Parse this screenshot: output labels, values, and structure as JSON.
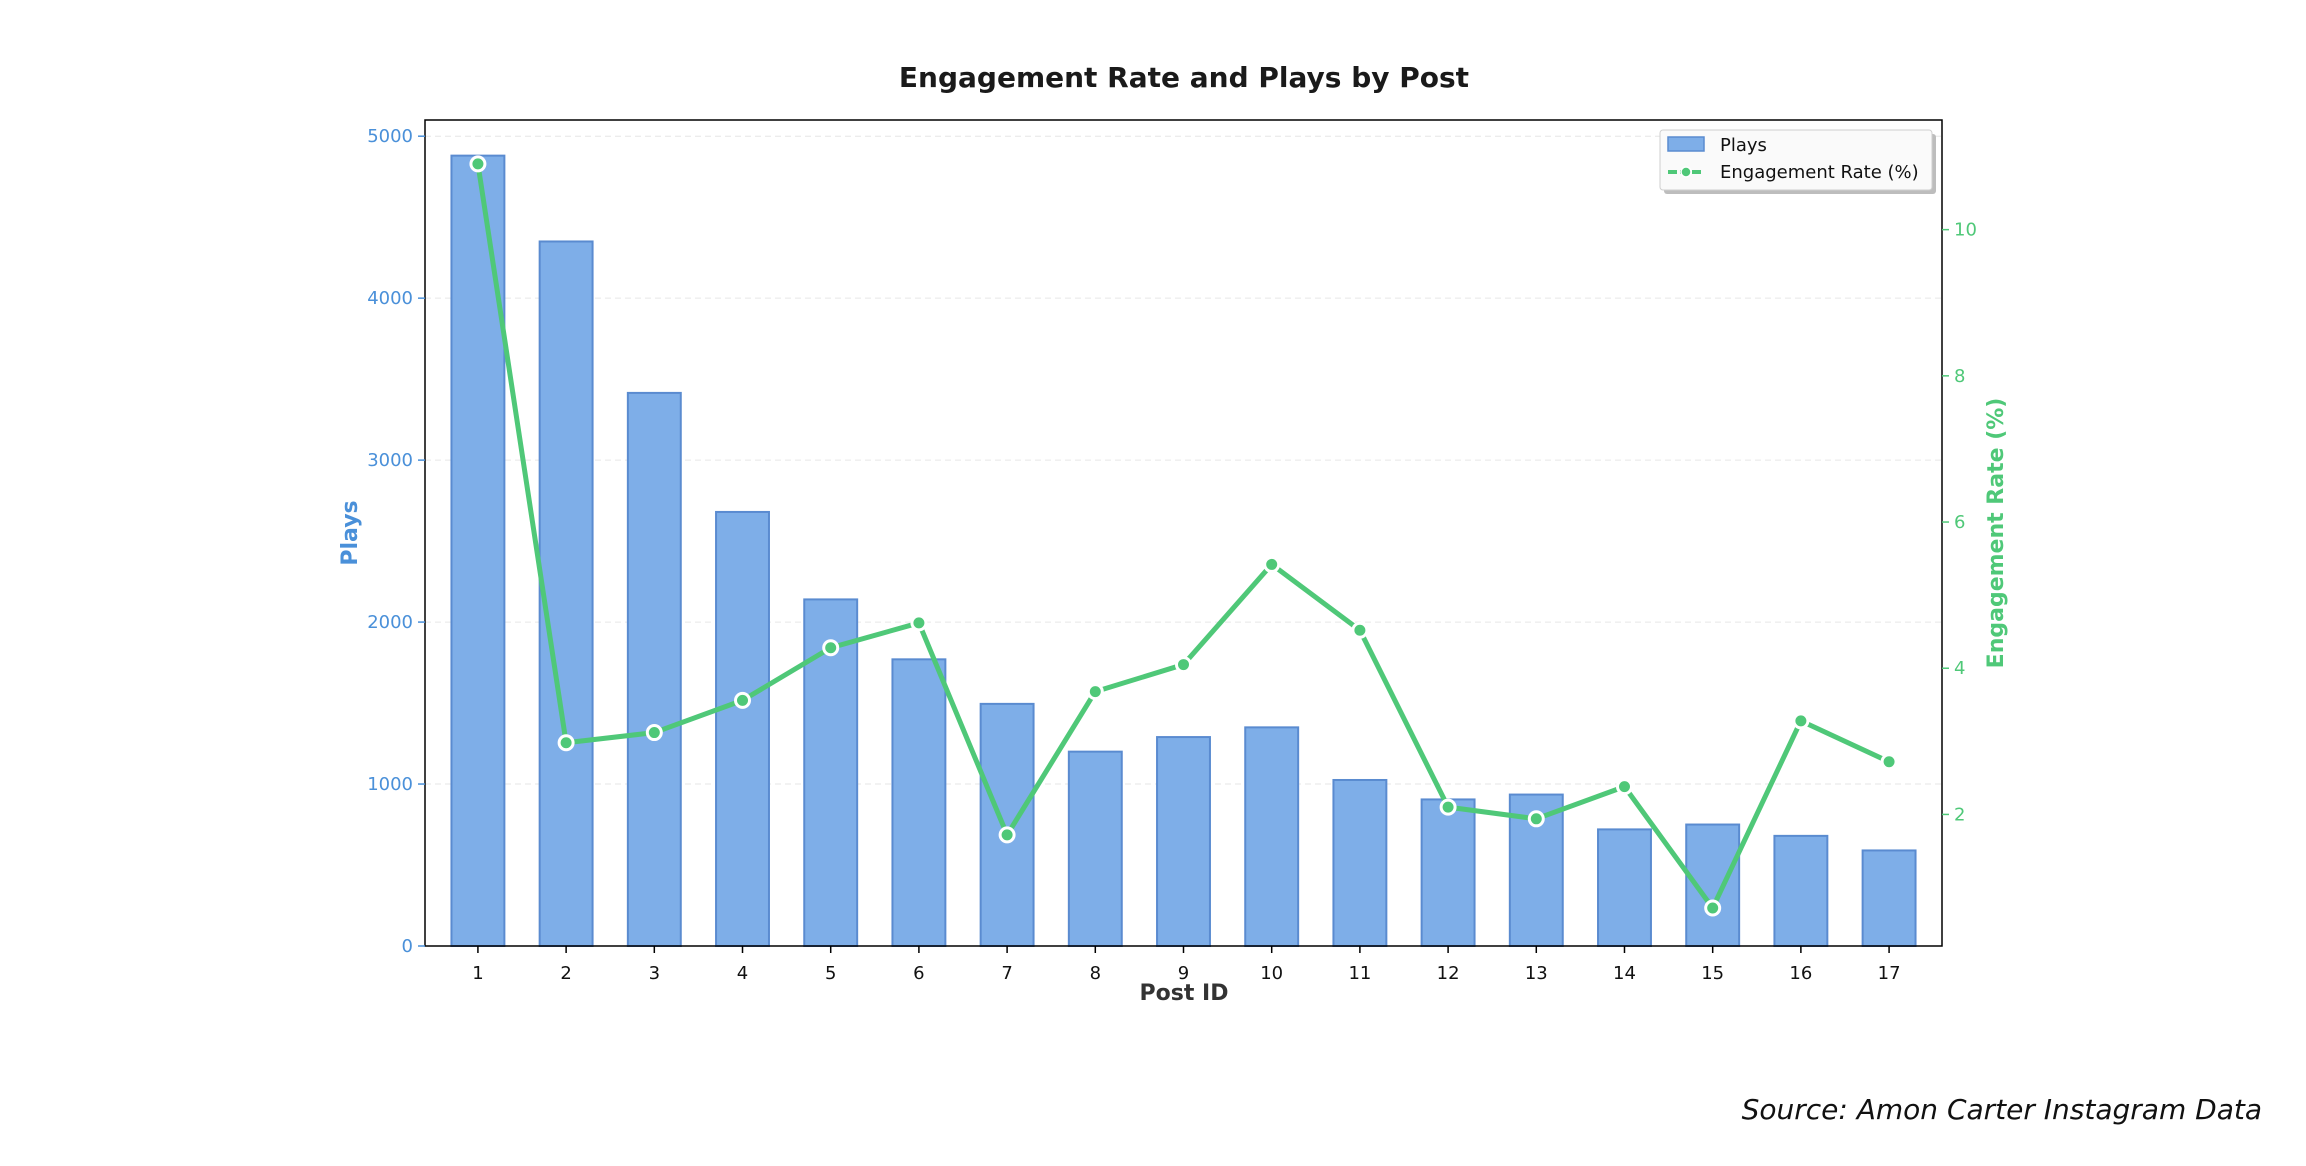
{
  "chart_data": {
    "type": "bar",
    "title": "Engagement Rate and Plays by Post",
    "xlabel": "Post ID",
    "ylabel": "Plays",
    "y2label": "Engagement Rate (%)",
    "categories": [
      "1",
      "2",
      "3",
      "4",
      "5",
      "6",
      "7",
      "8",
      "9",
      "10",
      "11",
      "12",
      "13",
      "14",
      "15",
      "16",
      "17"
    ],
    "ylim": [
      0,
      5100
    ],
    "y2lim": [
      0.2,
      11.5
    ],
    "yticks": [
      0,
      1000,
      2000,
      3000,
      4000,
      5000
    ],
    "y2ticks": [
      2,
      4,
      6,
      8,
      10
    ],
    "grid": true,
    "legend_position": "top-right",
    "series": [
      {
        "name": "Plays",
        "type": "bar",
        "axis": "left",
        "values": [
          4880,
          4350,
          3415,
          2680,
          2140,
          1770,
          1495,
          1200,
          1290,
          1350,
          1025,
          905,
          935,
          720,
          750,
          680,
          590
        ]
      },
      {
        "name": "Engagement Rate (%)",
        "type": "line",
        "axis": "right",
        "values": [
          10.9,
          2.98,
          3.12,
          3.56,
          4.28,
          4.62,
          1.72,
          3.68,
          4.05,
          5.42,
          4.52,
          2.1,
          1.94,
          2.38,
          0.72,
          3.28,
          2.72
        ]
      }
    ],
    "source": "Source: Amon Carter Instagram Data"
  },
  "colors": {
    "bar_fill": "#7EAEE8",
    "bar_edge": "#5A8BD0",
    "line": "#4FC878",
    "left_axis": "#4A90D9",
    "right_axis": "#4FC878",
    "grid": "#E6E6E6",
    "frame": "#000000"
  }
}
